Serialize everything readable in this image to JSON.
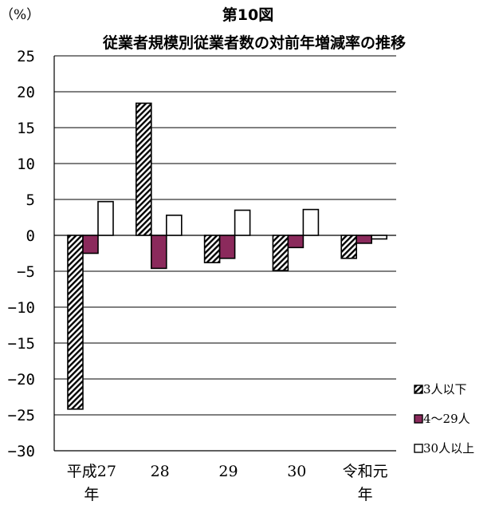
{
  "chart_data": {
    "type": "bar",
    "title_line1": "第10図",
    "title_line2": "従業者規模別従業者数の対前年増減率の推移",
    "unit_label": "（%）",
    "categories": [
      [
        "平成27",
        "年"
      ],
      [
        "28"
      ],
      [
        "29"
      ],
      [
        "30"
      ],
      [
        "令和元",
        "年"
      ]
    ],
    "series": [
      {
        "name": "3人以下",
        "values": [
          -24.2,
          18.4,
          -3.8,
          -4.9,
          -3.2
        ],
        "fill": "hatch"
      },
      {
        "name": "4～29人",
        "values": [
          -2.5,
          -4.6,
          -3.2,
          -1.7,
          -1.1
        ],
        "fill": "#8b2a5c"
      },
      {
        "name": "30人以上",
        "values": [
          4.7,
          2.8,
          3.5,
          3.6,
          -0.5
        ],
        "fill": "#ffffff"
      }
    ],
    "ylim": [
      -30,
      25
    ],
    "yticks": [
      25,
      20,
      15,
      10,
      5,
      0,
      -5,
      -10,
      -15,
      -20,
      -25,
      -30
    ],
    "grid": true,
    "legend_position": "right-bottom",
    "bar_stroke": "#000000",
    "grid_color": "#000000"
  }
}
